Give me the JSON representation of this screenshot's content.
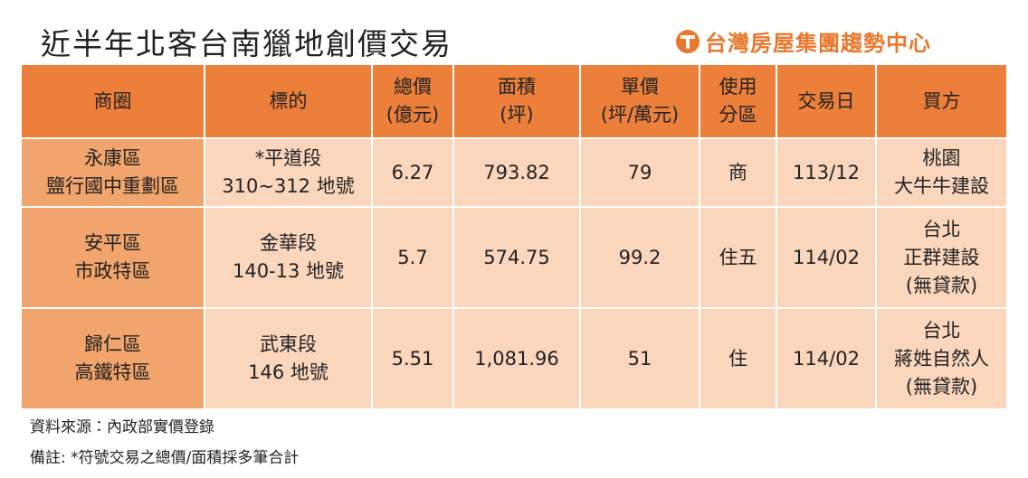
{
  "header": {
    "title": "近半年北客台南獵地創價交易",
    "logo": "台灣房屋集團趨勢中心"
  },
  "table": {
    "columns": [
      [
        "商圈"
      ],
      [
        "標的"
      ],
      [
        "總價",
        "(億元)"
      ],
      [
        "面積",
        "(坪)"
      ],
      [
        "單價",
        "(坪/萬元)"
      ],
      [
        "使用",
        "分區"
      ],
      [
        "交易日"
      ],
      [
        "買方"
      ]
    ],
    "rows": [
      [
        [
          "永康區",
          "鹽行國中重劃區"
        ],
        [
          "*平道段",
          "310~312 地號"
        ],
        [
          "6.27"
        ],
        [
          "793.82"
        ],
        [
          "79"
        ],
        [
          "商"
        ],
        [
          "113/12"
        ],
        [
          "桃園",
          "大牛牛建設"
        ]
      ],
      [
        [
          "安平區",
          "市政特區"
        ],
        [
          "金華段",
          "140-13 地號"
        ],
        [
          "5.7"
        ],
        [
          "574.75"
        ],
        [
          "99.2"
        ],
        [
          "住五"
        ],
        [
          "114/02"
        ],
        [
          "台北",
          "正群建設",
          "(無貸款)"
        ]
      ],
      [
        [
          "歸仁區",
          "高鐵特區"
        ],
        [
          "武東段",
          "146 地號"
        ],
        [
          "5.51"
        ],
        [
          "1,081.96"
        ],
        [
          "51"
        ],
        [
          "住"
        ],
        [
          "114/02"
        ],
        [
          "台北",
          "蔣姓自然人",
          "(無貸款)"
        ]
      ]
    ]
  },
  "footer": {
    "source": "資料來源：內政部實價登錄",
    "remark": "備註: *符號交易之總價/面積採多筆合計"
  }
}
